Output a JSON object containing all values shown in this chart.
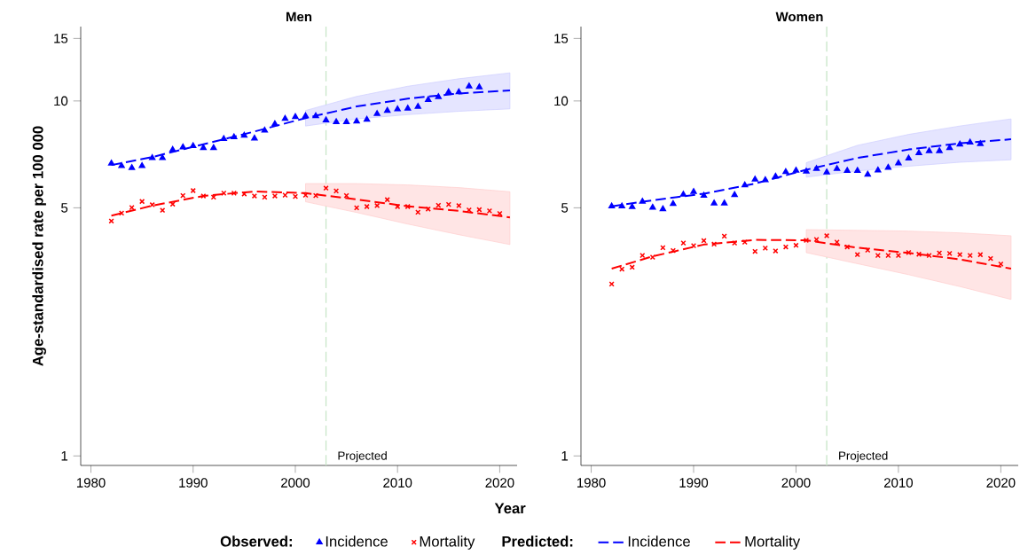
{
  "chart_data": [
    {
      "type": "scatter",
      "title": "Men",
      "xlabel": "Year",
      "ylabel": "Age-standardised rate per 100 000",
      "annotations": [
        "Observed:",
        "Predicted:"
      ],
      "log": "y",
      "legend": "bottom",
      "xlim": [
        1979,
        2021.7
      ],
      "ylim": [
        0.94,
        16.2
      ],
      "xticks": [
        1980,
        1990,
        2000,
        2010,
        2020
      ],
      "yticks": [
        1,
        5,
        10,
        15
      ],
      "ref_lines": [
        {
          "axis": "x",
          "value": 2003,
          "label": "Projected",
          "color": "#c8e6c8",
          "line_style": "dashed"
        }
      ],
      "series": [
        {
          "name": "Incidence",
          "marker": "triangle",
          "color": "#0000ff",
          "x": [
            1982,
            1983,
            1984,
            1985,
            1986,
            1987,
            1988,
            1989,
            1990,
            1991,
            1992,
            1993,
            1994,
            1995,
            1996,
            1997,
            1998,
            1999,
            2000,
            2001,
            2002,
            2003,
            2004,
            2005,
            2006,
            2007,
            2008,
            2009,
            2010,
            2011,
            2012,
            2013,
            2014,
            2015,
            2016,
            2017,
            2018
          ],
          "values": [
            6.67,
            6.56,
            6.48,
            6.56,
            6.91,
            6.91,
            7.29,
            7.41,
            7.47,
            7.38,
            7.38,
            7.82,
            7.91,
            7.99,
            7.85,
            8.26,
            8.61,
            8.91,
            9.02,
            9.07,
            9.07,
            8.83,
            8.73,
            8.73,
            8.76,
            8.86,
            9.2,
            9.39,
            9.48,
            9.53,
            9.64,
            10.08,
            10.27,
            10.59,
            10.59,
            11.0,
            10.94
          ]
        },
        {
          "name": "Mortality",
          "marker": "cross",
          "color": "#ff0000",
          "x": [
            1982,
            1983,
            1984,
            1985,
            1986,
            1987,
            1988,
            1989,
            1990,
            1991,
            1992,
            1993,
            1994,
            1995,
            1996,
            1997,
            1998,
            1999,
            2000,
            2001,
            2002,
            2003,
            2004,
            2005,
            2006,
            2007,
            2008,
            2009,
            2010,
            2011,
            2012,
            2013,
            2014,
            2015,
            2016,
            2017,
            2018,
            2019,
            2020
          ],
          "values": [
            4.59,
            4.83,
            5.01,
            5.21,
            5.1,
            4.92,
            5.12,
            5.41,
            5.59,
            5.4,
            5.36,
            5.5,
            5.5,
            5.47,
            5.4,
            5.36,
            5.4,
            5.43,
            5.38,
            5.43,
            5.41,
            5.68,
            5.58,
            5.41,
            5.0,
            5.04,
            5.07,
            5.27,
            5.04,
            5.04,
            4.86,
            4.96,
            5.08,
            5.11,
            5.07,
            4.93,
            4.94,
            4.9,
            4.82
          ]
        },
        {
          "name": "Incidence",
          "type": "line",
          "line_style": "dashed",
          "color": "#0000ff",
          "x": [
            1982,
            1986,
            1991,
            1996,
            2001,
            2006,
            2011,
            2016,
            2021
          ],
          "values": [
            6.6,
            6.95,
            7.55,
            8.2,
            8.95,
            9.65,
            10.15,
            10.5,
            10.7
          ],
          "lower": [
            null,
            null,
            null,
            null,
            8.5,
            8.9,
            9.15,
            9.35,
            9.5
          ],
          "upper": [
            null,
            null,
            null,
            null,
            9.4,
            10.3,
            11.0,
            11.55,
            12.0
          ]
        },
        {
          "name": "Mortality",
          "type": "line",
          "line_style": "dashed",
          "color": "#ff0000",
          "x": [
            1982,
            1986,
            1991,
            1996,
            2001,
            2006,
            2011,
            2016,
            2021
          ],
          "values": [
            4.75,
            5.07,
            5.4,
            5.56,
            5.5,
            5.28,
            5.05,
            4.9,
            4.7
          ],
          "lower": [
            null,
            null,
            null,
            null,
            5.2,
            4.85,
            4.5,
            4.2,
            3.94
          ],
          "upper": [
            null,
            null,
            null,
            null,
            5.85,
            5.85,
            5.8,
            5.7,
            5.55
          ]
        }
      ]
    },
    {
      "type": "scatter",
      "title": "Women",
      "log": "y",
      "xlim": [
        1979,
        2021.7
      ],
      "ylim": [
        0.94,
        16.2
      ],
      "xticks": [
        1980,
        1990,
        2000,
        2010,
        2020
      ],
      "yticks": [
        1,
        5,
        10,
        15
      ],
      "ref_lines": [
        {
          "axis": "x",
          "value": 2003,
          "label": "Projected",
          "color": "#c8e6c8",
          "line_style": "dashed"
        }
      ],
      "series": [
        {
          "marker": "triangle",
          "color": "#0000ff",
          "x": [
            1982,
            1983,
            1984,
            1985,
            1986,
            1987,
            1988,
            1989,
            1990,
            1991,
            1992,
            1993,
            1994,
            1995,
            1996,
            1997,
            1998,
            1999,
            2000,
            2001,
            2002,
            2003,
            2004,
            2005,
            2006,
            2007,
            2008,
            2009,
            2010,
            2011,
            2012,
            2013,
            2014,
            2015,
            2016,
            2017,
            2018
          ],
          "values": [
            5.05,
            5.05,
            5.03,
            5.21,
            5.01,
            4.96,
            5.13,
            5.45,
            5.55,
            5.41,
            5.15,
            5.15,
            5.44,
            5.79,
            6.01,
            5.99,
            6.13,
            6.31,
            6.37,
            6.33,
            6.44,
            6.3,
            6.44,
            6.36,
            6.36,
            6.21,
            6.38,
            6.49,
            6.68,
            6.89,
            7.13,
            7.23,
            7.23,
            7.38,
            7.55,
            7.64,
            7.57
          ]
        },
        {
          "marker": "cross",
          "color": "#ff0000",
          "x": [
            1982,
            1983,
            1984,
            1985,
            1986,
            1987,
            1988,
            1989,
            1990,
            1991,
            1992,
            1993,
            1994,
            1995,
            1996,
            1997,
            1998,
            1999,
            2000,
            2001,
            2002,
            2003,
            2004,
            2005,
            2006,
            2007,
            2008,
            2009,
            2010,
            2011,
            2012,
            2013,
            2014,
            2015,
            2016,
            2017,
            2018,
            2019,
            2020
          ],
          "values": [
            3.05,
            3.36,
            3.4,
            3.67,
            3.63,
            3.86,
            3.79,
            3.98,
            3.91,
            4.04,
            3.95,
            4.16,
            3.98,
            4.0,
            3.77,
            3.85,
            3.78,
            3.88,
            3.92,
            4.05,
            4.07,
            4.17,
            4.0,
            3.88,
            3.69,
            3.8,
            3.67,
            3.67,
            3.67,
            3.74,
            3.7,
            3.67,
            3.73,
            3.72,
            3.69,
            3.67,
            3.69,
            3.6,
            3.47
          ]
        },
        {
          "type": "line",
          "line_style": "dashed",
          "color": "#0000ff",
          "x": [
            1982,
            1986,
            1991,
            1996,
            2001,
            2006,
            2011,
            2016,
            2021
          ],
          "values": [
            5.05,
            5.25,
            5.48,
            5.85,
            6.4,
            6.91,
            7.3,
            7.6,
            7.8
          ],
          "lower": [
            null,
            null,
            null,
            null,
            6.1,
            6.35,
            6.55,
            6.72,
            6.83
          ],
          "upper": [
            null,
            null,
            null,
            null,
            6.7,
            7.5,
            8.05,
            8.5,
            8.9
          ]
        },
        {
          "type": "line",
          "line_style": "dashed",
          "color": "#ff0000",
          "x": [
            1982,
            1986,
            1991,
            1996,
            2001,
            2006,
            2011,
            2016,
            2021
          ],
          "values": [
            3.37,
            3.65,
            3.94,
            4.06,
            4.05,
            3.86,
            3.73,
            3.58,
            3.37
          ],
          "lower": [
            null,
            null,
            null,
            null,
            3.74,
            3.48,
            3.24,
            3.0,
            2.76
          ],
          "upper": [
            null,
            null,
            null,
            null,
            4.34,
            4.32,
            4.3,
            4.25,
            4.17
          ]
        }
      ]
    }
  ]
}
